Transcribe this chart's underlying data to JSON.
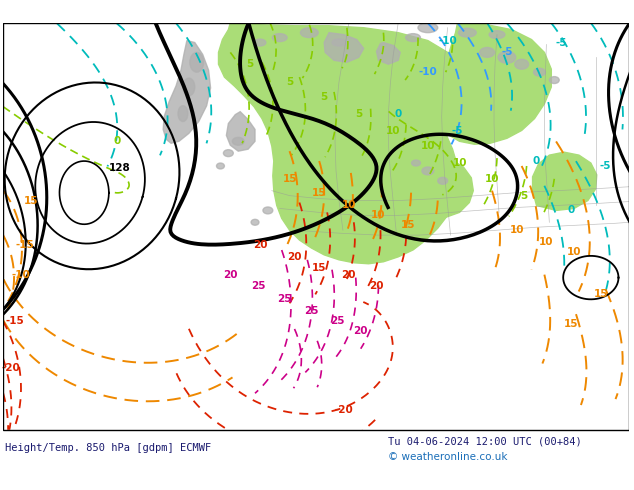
{
  "title_left": "Height/Temp. 850 hPa [gdpm] ECMWF",
  "title_right": "Tu 04-06-2024 12:00 UTC (00+84)",
  "copyright": "© weatheronline.co.uk",
  "bg_color": "#d8d8d8",
  "green_fill": "#aadd77",
  "fig_width": 6.34,
  "fig_height": 4.9,
  "dpi": 100,
  "bottom_text_color": "#1a1a6e",
  "copyright_color": "#1a6eb8",
  "cyan_color": "#00bbbb",
  "lgreen_color": "#88cc00",
  "orange_color": "#ee8800",
  "red_color": "#dd2200",
  "magenta_color": "#cc0088",
  "blue_color": "#0066cc"
}
